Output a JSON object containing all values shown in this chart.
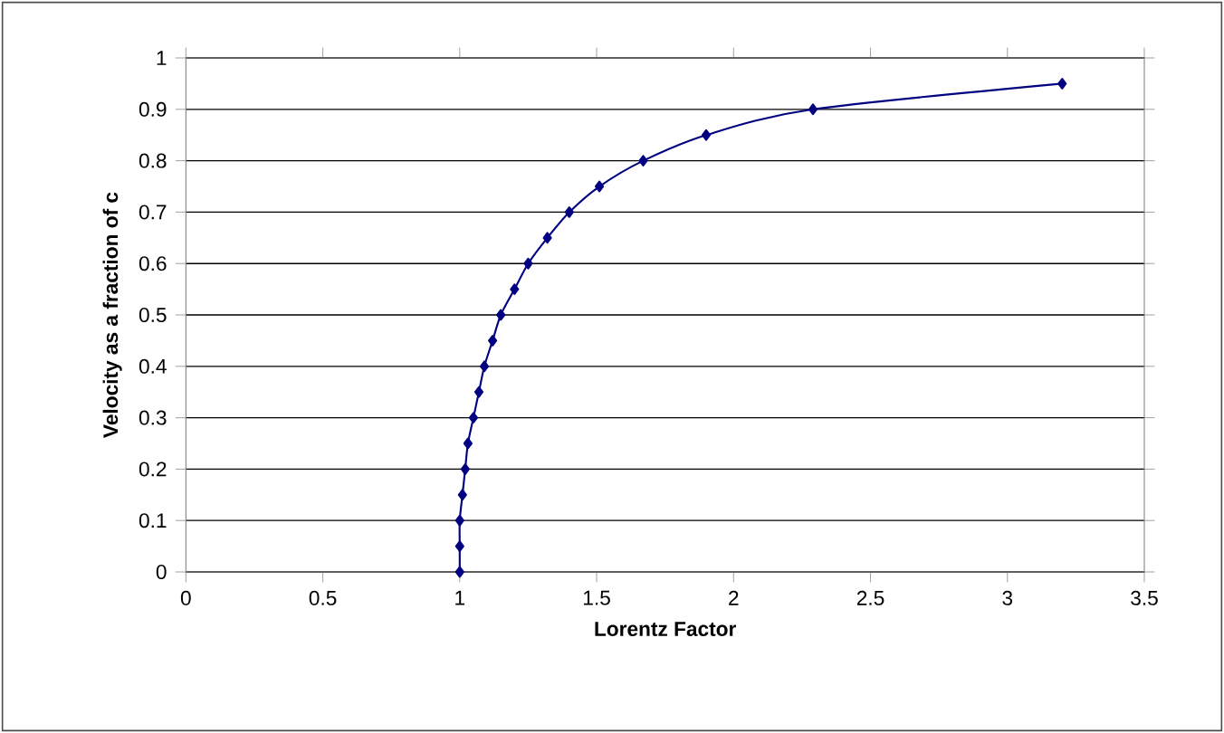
{
  "chart_data": {
    "type": "line",
    "xlabel": "Lorentz Factor",
    "ylabel": "Velocity as a fraction of c",
    "xlim": [
      0,
      3.5
    ],
    "xticks": [
      0,
      0.5,
      1,
      1.5,
      2,
      2.5,
      3,
      3.5
    ],
    "ylim": [
      0,
      1
    ],
    "yticks": [
      0,
      0.1,
      0.2,
      0.3,
      0.4,
      0.5,
      0.6,
      0.7,
      0.8,
      0.9,
      1
    ],
    "grid": "y",
    "marker": "diamond",
    "line_style": "solid",
    "series": [
      {
        "color": "#000080",
        "x": [
          1,
          1,
          1,
          1.01,
          1.02,
          1.03,
          1.05,
          1.07,
          1.09,
          1.12,
          1.15,
          1.2,
          1.25,
          1.32,
          1.4,
          1.51,
          1.67,
          1.9,
          2.29,
          3.2
        ],
        "values": [
          0,
          0.05,
          0.1,
          0.15,
          0.2,
          0.25,
          0.3,
          0.35,
          0.4,
          0.45,
          0.5,
          0.55,
          0.6,
          0.65,
          0.7,
          0.75,
          0.8,
          0.85,
          0.9,
          0.95
        ]
      }
    ]
  }
}
